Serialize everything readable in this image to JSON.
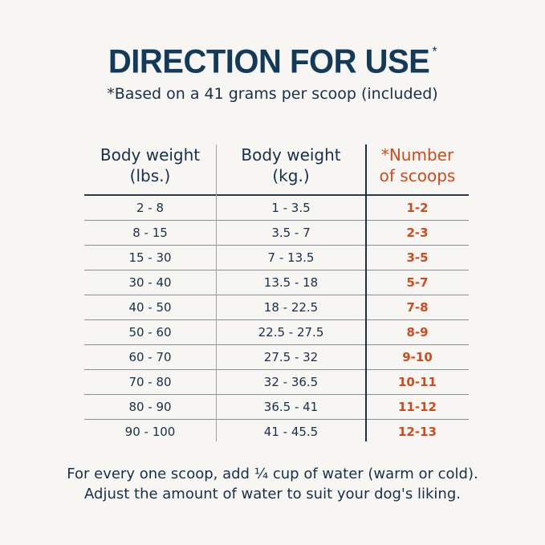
{
  "title": "DIRECTION FOR USE",
  "title_mark": "*",
  "subtitle": "*Based on a 41 grams per scoop (included)",
  "table": {
    "headers": [
      [
        "Body weight",
        "(lbs.)"
      ],
      [
        "Body weight",
        "(kg.)"
      ],
      [
        "*Number",
        "of scoops"
      ]
    ],
    "rows": [
      [
        "2 - 8",
        "1 - 3.5",
        "1-2"
      ],
      [
        "8 - 15",
        "3.5 - 7",
        "2-3"
      ],
      [
        "15 - 30",
        "7 - 13.5",
        "3-5"
      ],
      [
        "30 - 40",
        "13.5 - 18",
        "5-7"
      ],
      [
        "40 - 50",
        "18 - 22.5",
        "7-8"
      ],
      [
        "50 - 60",
        "22.5 - 27.5",
        "8-9"
      ],
      [
        "60 - 70",
        "27.5 - 32",
        "9-10"
      ],
      [
        "70 - 80",
        "32 - 36.5",
        "10-11"
      ],
      [
        "80 - 90",
        "36.5 - 41",
        "11-12"
      ],
      [
        "90 - 100",
        "41 - 45.5",
        "12-13"
      ]
    ]
  },
  "footer": [
    "For every one scoop, add ¼ cup of water (warm or cold).",
    "Adjust the amount of water to suit your dog's liking."
  ],
  "colors": {
    "navy": "#17304a",
    "accent": "#cf4a1c",
    "background": "#f7f6f3"
  }
}
